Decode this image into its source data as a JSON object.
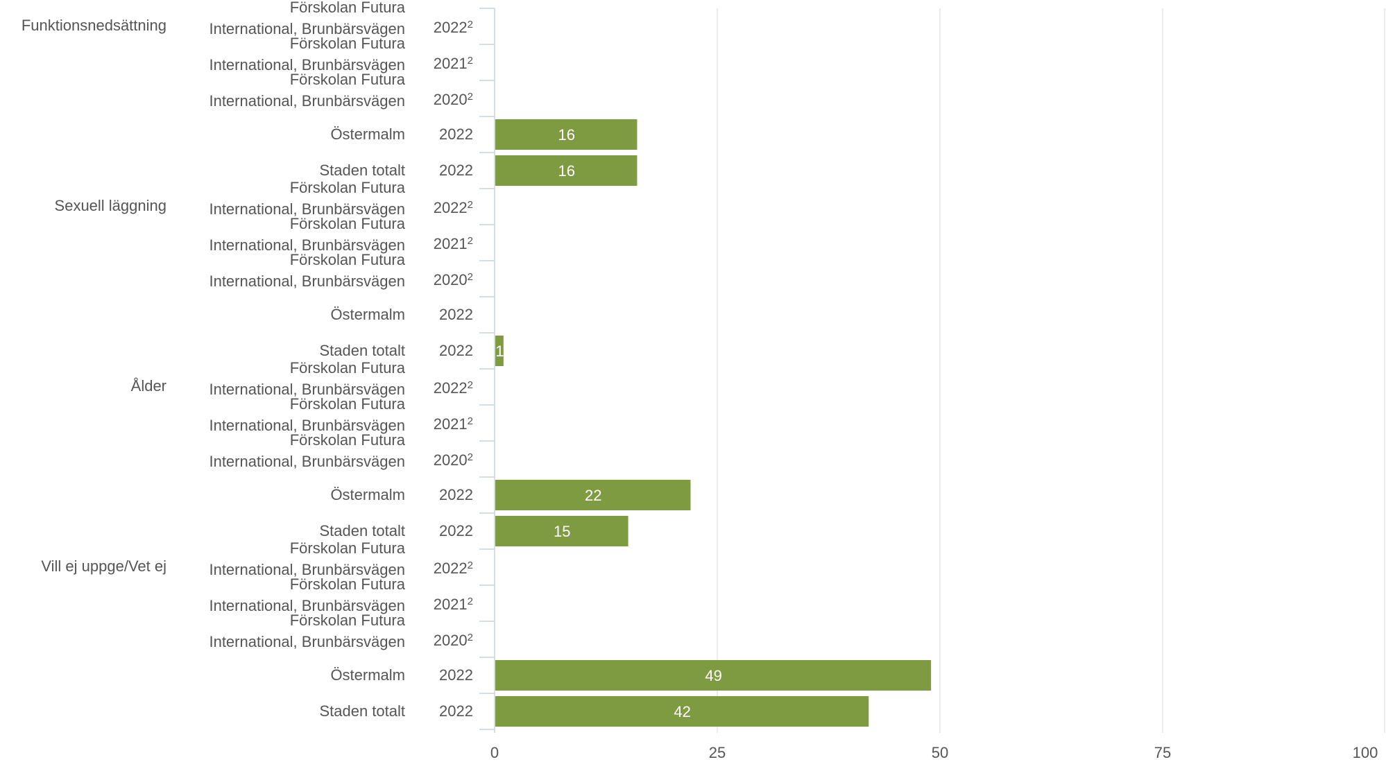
{
  "chart_data": {
    "type": "bar",
    "orientation": "horizontal",
    "xlim": [
      0,
      100
    ],
    "x_ticks": [
      "0",
      "25",
      "50",
      "75",
      "100"
    ],
    "grid": true,
    "bar_color": "#7f9b41",
    "groups": [
      {
        "label": "Funktionsnedsättning",
        "rows": [
          {
            "name": [
              "Förskolan Futura",
              "International, Brunbärsvägen"
            ],
            "year": "2022",
            "note": "2",
            "value": null
          },
          {
            "name": [
              "Förskolan Futura",
              "International, Brunbärsvägen"
            ],
            "year": "2021",
            "note": "2",
            "value": null
          },
          {
            "name": [
              "Förskolan Futura",
              "International, Brunbärsvägen"
            ],
            "year": "2020",
            "note": "2",
            "value": null
          },
          {
            "name": [
              "Östermalm"
            ],
            "year": "2022",
            "note": "",
            "value": 16
          },
          {
            "name": [
              "Staden totalt"
            ],
            "year": "2022",
            "note": "",
            "value": 16
          }
        ]
      },
      {
        "label": "Sexuell läggning",
        "rows": [
          {
            "name": [
              "Förskolan Futura",
              "International, Brunbärsvägen"
            ],
            "year": "2022",
            "note": "2",
            "value": null
          },
          {
            "name": [
              "Förskolan Futura",
              "International, Brunbärsvägen"
            ],
            "year": "2021",
            "note": "2",
            "value": null
          },
          {
            "name": [
              "Förskolan Futura",
              "International, Brunbärsvägen"
            ],
            "year": "2020",
            "note": "2",
            "value": null
          },
          {
            "name": [
              "Östermalm"
            ],
            "year": "2022",
            "note": "",
            "value": null
          },
          {
            "name": [
              "Staden totalt"
            ],
            "year": "2022",
            "note": "",
            "value": 1
          }
        ]
      },
      {
        "label": "Ålder",
        "rows": [
          {
            "name": [
              "Förskolan Futura",
              "International, Brunbärsvägen"
            ],
            "year": "2022",
            "note": "2",
            "value": null
          },
          {
            "name": [
              "Förskolan Futura",
              "International, Brunbärsvägen"
            ],
            "year": "2021",
            "note": "2",
            "value": null
          },
          {
            "name": [
              "Förskolan Futura",
              "International, Brunbärsvägen"
            ],
            "year": "2020",
            "note": "2",
            "value": null
          },
          {
            "name": [
              "Östermalm"
            ],
            "year": "2022",
            "note": "",
            "value": 22
          },
          {
            "name": [
              "Staden totalt"
            ],
            "year": "2022",
            "note": "",
            "value": 15
          }
        ]
      },
      {
        "label": "Vill ej uppge/Vet ej",
        "rows": [
          {
            "name": [
              "Förskolan Futura",
              "International, Brunbärsvägen"
            ],
            "year": "2022",
            "note": "2",
            "value": null
          },
          {
            "name": [
              "Förskolan Futura",
              "International, Brunbärsvägen"
            ],
            "year": "2021",
            "note": "2",
            "value": null
          },
          {
            "name": [
              "Förskolan Futura",
              "International, Brunbärsvägen"
            ],
            "year": "2020",
            "note": "2",
            "value": null
          },
          {
            "name": [
              "Östermalm"
            ],
            "year": "2022",
            "note": "",
            "value": 49
          },
          {
            "name": [
              "Staden totalt"
            ],
            "year": "2022",
            "note": "",
            "value": 42
          }
        ]
      }
    ]
  }
}
